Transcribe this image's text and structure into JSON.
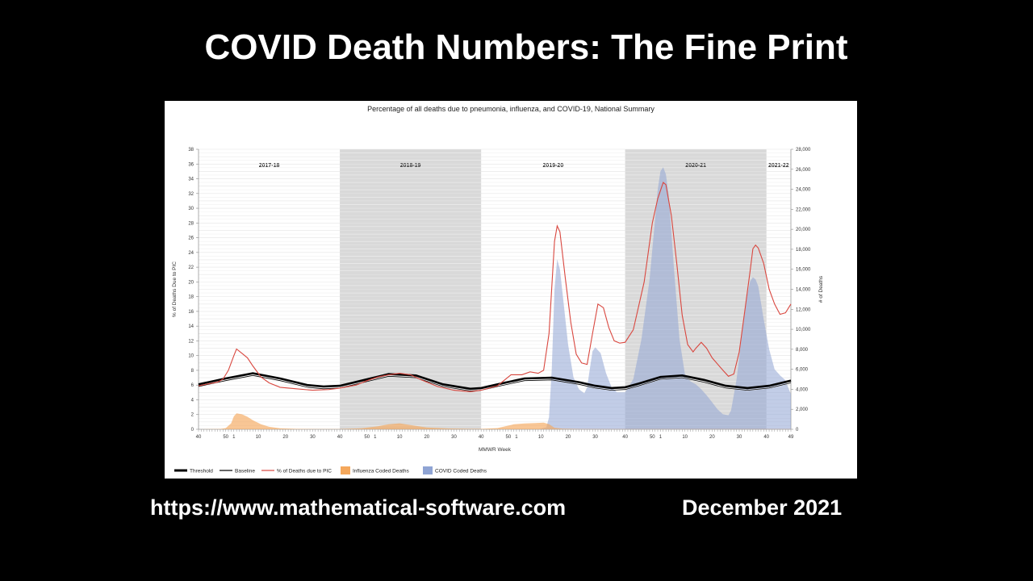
{
  "slide": {
    "title": "COVID Death Numbers: The Fine Print",
    "url": "https://www.mathematical-software.com",
    "date": "December 2021"
  },
  "chart_data": {
    "type": "line",
    "title": "Percentage of all deaths due to pneumonia, influenza, and COVID-19, National Summary",
    "xlabel": "MMWR Week",
    "ylabel_left": "% of Deaths Due to PIC",
    "ylabel_right": "# of Deaths",
    "ylim_left": [
      0,
      38
    ],
    "ylim_right": [
      0,
      28000
    ],
    "yticks_left": [
      "0",
      "2",
      "4",
      "6",
      "8",
      "10",
      "12",
      "14",
      "16",
      "18",
      "20",
      "22",
      "24",
      "26",
      "28",
      "30",
      "32",
      "34",
      "36",
      "38"
    ],
    "yticks_right": [
      "0",
      "2,000",
      "4,000",
      "6,000",
      "8,000",
      "10,000",
      "12,000",
      "14,000",
      "16,000",
      "18,000",
      "20,000",
      "22,000",
      "24,000",
      "26,000",
      "28,000"
    ],
    "x_ticks": [
      {
        "t": 0,
        "label": "40"
      },
      {
        "t": 10,
        "label": "50"
      },
      {
        "t": 13,
        "label": "1"
      },
      {
        "t": 22,
        "label": "10"
      },
      {
        "t": 32,
        "label": "20"
      },
      {
        "t": 42,
        "label": "30"
      },
      {
        "t": 52,
        "label": "40"
      },
      {
        "t": 62,
        "label": "50"
      },
      {
        "t": 65,
        "label": "1"
      },
      {
        "t": 74,
        "label": "10"
      },
      {
        "t": 84,
        "label": "20"
      },
      {
        "t": 94,
        "label": "30"
      },
      {
        "t": 104,
        "label": "40"
      },
      {
        "t": 114,
        "label": "50"
      },
      {
        "t": 117,
        "label": "1"
      },
      {
        "t": 126,
        "label": "10"
      },
      {
        "t": 136,
        "label": "20"
      },
      {
        "t": 146,
        "label": "30"
      },
      {
        "t": 157,
        "label": "40"
      },
      {
        "t": 167,
        "label": "50"
      },
      {
        "t": 170,
        "label": "1"
      },
      {
        "t": 179,
        "label": "10"
      },
      {
        "t": 189,
        "label": "20"
      },
      {
        "t": 199,
        "label": "30"
      },
      {
        "t": 209,
        "label": "40"
      },
      {
        "t": 218,
        "label": "49"
      }
    ],
    "seasons": [
      {
        "label": "2017-18",
        "start": 0,
        "end": 52,
        "shaded": false
      },
      {
        "label": "2018-19",
        "start": 52,
        "end": 104,
        "shaded": true
      },
      {
        "label": "2019-20",
        "start": 104,
        "end": 157,
        "shaded": false
      },
      {
        "label": "2020-21",
        "start": 157,
        "end": 209,
        "shaded": true
      },
      {
        "label": "2021-22",
        "start": 209,
        "end": 218,
        "shaded": false
      }
    ],
    "legend": [
      "Threshold",
      "Baseline",
      "% of Deaths due to PIC",
      "Influenza Coded Deaths",
      "COVID Coded Deaths"
    ],
    "legend_position": "bottom",
    "colors": {
      "threshold": "#000000",
      "baseline": "#000000",
      "pic": "#d9473f",
      "influenza": "#f5a85c",
      "covid": "#8fa4d4",
      "shade": "#d9d9d9"
    },
    "series": [
      {
        "name": "% of Deaths due to PIC",
        "axis": "left",
        "points": [
          [
            0,
            5.9
          ],
          [
            4,
            6.2
          ],
          [
            7,
            6.4
          ],
          [
            9,
            6.8
          ],
          [
            11,
            8.0
          ],
          [
            13,
            10.0
          ],
          [
            14,
            10.9
          ],
          [
            16,
            10.3
          ],
          [
            18,
            9.7
          ],
          [
            20,
            8.6
          ],
          [
            23,
            7.1
          ],
          [
            26,
            6.3
          ],
          [
            30,
            5.7
          ],
          [
            36,
            5.5
          ],
          [
            42,
            5.3
          ],
          [
            48,
            5.4
          ],
          [
            52,
            5.6
          ],
          [
            58,
            6.0
          ],
          [
            62,
            6.6
          ],
          [
            66,
            7.1
          ],
          [
            70,
            7.4
          ],
          [
            74,
            7.6
          ],
          [
            78,
            7.4
          ],
          [
            82,
            6.7
          ],
          [
            88,
            5.8
          ],
          [
            94,
            5.3
          ],
          [
            100,
            5.1
          ],
          [
            104,
            5.3
          ],
          [
            110,
            5.9
          ],
          [
            115,
            7.4
          ],
          [
            119,
            7.4
          ],
          [
            122,
            7.8
          ],
          [
            125,
            7.6
          ],
          [
            127,
            8.0
          ],
          [
            129,
            13.0
          ],
          [
            131,
            25.5
          ],
          [
            132,
            27.6
          ],
          [
            133,
            26.8
          ],
          [
            135,
            20.5
          ],
          [
            137,
            14.5
          ],
          [
            139,
            10.2
          ],
          [
            141,
            9.0
          ],
          [
            143,
            8.8
          ],
          [
            145,
            13.0
          ],
          [
            147,
            17.0
          ],
          [
            149,
            16.5
          ],
          [
            151,
            13.8
          ],
          [
            153,
            12.0
          ],
          [
            155,
            11.7
          ],
          [
            157,
            11.8
          ],
          [
            160,
            13.5
          ],
          [
            164,
            20.0
          ],
          [
            167,
            28.0
          ],
          [
            169,
            31.3
          ],
          [
            171,
            33.5
          ],
          [
            172,
            33.2
          ],
          [
            174,
            29.0
          ],
          [
            176,
            22.5
          ],
          [
            178,
            15.5
          ],
          [
            180,
            11.5
          ],
          [
            182,
            10.5
          ],
          [
            183,
            11.0
          ],
          [
            185,
            11.8
          ],
          [
            187,
            11.0
          ],
          [
            189,
            9.7
          ],
          [
            193,
            8.0
          ],
          [
            195,
            7.2
          ],
          [
            197,
            7.5
          ],
          [
            199,
            10.5
          ],
          [
            201,
            16.0
          ],
          [
            203,
            21.5
          ],
          [
            204,
            24.5
          ],
          [
            205,
            25.0
          ],
          [
            206,
            24.6
          ],
          [
            208,
            22.5
          ],
          [
            210,
            19.0
          ],
          [
            212,
            17.0
          ],
          [
            214,
            15.6
          ],
          [
            216,
            15.8
          ],
          [
            218,
            17.0
          ]
        ]
      },
      {
        "name": "Threshold",
        "axis": "left",
        "points": [
          [
            0,
            6.1
          ],
          [
            10,
            6.9
          ],
          [
            20,
            7.6
          ],
          [
            30,
            6.9
          ],
          [
            40,
            6.0
          ],
          [
            46,
            5.8
          ],
          [
            52,
            5.9
          ],
          [
            60,
            6.6
          ],
          [
            70,
            7.5
          ],
          [
            80,
            7.3
          ],
          [
            90,
            6.1
          ],
          [
            100,
            5.5
          ],
          [
            104,
            5.6
          ],
          [
            110,
            6.1
          ],
          [
            120,
            6.9
          ],
          [
            130,
            7.0
          ],
          [
            140,
            6.4
          ],
          [
            146,
            5.9
          ],
          [
            152,
            5.6
          ],
          [
            157,
            5.7
          ],
          [
            162,
            6.2
          ],
          [
            170,
            7.1
          ],
          [
            178,
            7.3
          ],
          [
            186,
            6.7
          ],
          [
            194,
            5.9
          ],
          [
            202,
            5.6
          ],
          [
            210,
            5.9
          ],
          [
            218,
            6.6
          ]
        ]
      },
      {
        "name": "Baseline",
        "axis": "left",
        "points": [
          [
            0,
            5.8
          ],
          [
            10,
            6.6
          ],
          [
            20,
            7.3
          ],
          [
            30,
            6.6
          ],
          [
            40,
            5.7
          ],
          [
            46,
            5.5
          ],
          [
            52,
            5.6
          ],
          [
            60,
            6.3
          ],
          [
            70,
            7.2
          ],
          [
            80,
            7.0
          ],
          [
            90,
            5.8
          ],
          [
            100,
            5.2
          ],
          [
            104,
            5.3
          ],
          [
            110,
            5.8
          ],
          [
            120,
            6.6
          ],
          [
            130,
            6.7
          ],
          [
            140,
            6.1
          ],
          [
            146,
            5.6
          ],
          [
            152,
            5.3
          ],
          [
            157,
            5.4
          ],
          [
            162,
            5.9
          ],
          [
            170,
            6.8
          ],
          [
            178,
            7.0
          ],
          [
            186,
            6.4
          ],
          [
            194,
            5.6
          ],
          [
            202,
            5.3
          ],
          [
            210,
            5.6
          ],
          [
            218,
            6.3
          ]
        ]
      },
      {
        "name": "Influenza Coded Deaths",
        "axis": "right",
        "points": [
          [
            0,
            0
          ],
          [
            8,
            30
          ],
          [
            10,
            120
          ],
          [
            12,
            600
          ],
          [
            13,
            1300
          ],
          [
            14,
            1600
          ],
          [
            16,
            1500
          ],
          [
            18,
            1250
          ],
          [
            20,
            900
          ],
          [
            23,
            500
          ],
          [
            26,
            250
          ],
          [
            30,
            100
          ],
          [
            36,
            40
          ],
          [
            44,
            15
          ],
          [
            52,
            20
          ],
          [
            60,
            100
          ],
          [
            66,
            300
          ],
          [
            70,
            500
          ],
          [
            74,
            600
          ],
          [
            78,
            420
          ],
          [
            84,
            180
          ],
          [
            92,
            80
          ],
          [
            100,
            40
          ],
          [
            104,
            40
          ],
          [
            110,
            120
          ],
          [
            116,
            500
          ],
          [
            120,
            580
          ],
          [
            124,
            620
          ],
          [
            127,
            660
          ],
          [
            129,
            520
          ],
          [
            131,
            150
          ],
          [
            134,
            60
          ],
          [
            140,
            30
          ],
          [
            150,
            15
          ],
          [
            160,
            15
          ],
          [
            170,
            20
          ],
          [
            190,
            15
          ],
          [
            210,
            15
          ],
          [
            218,
            15
          ]
        ]
      },
      {
        "name": "COVID Coded Deaths",
        "axis": "right",
        "points": [
          [
            125,
            0
          ],
          [
            128,
            200
          ],
          [
            129,
            1200
          ],
          [
            130,
            6000
          ],
          [
            131,
            14000
          ],
          [
            132,
            17000
          ],
          [
            133,
            16000
          ],
          [
            134,
            13500
          ],
          [
            136,
            8500
          ],
          [
            138,
            5200
          ],
          [
            140,
            4000
          ],
          [
            142,
            3600
          ],
          [
            143,
            4200
          ],
          [
            144,
            6000
          ],
          [
            145,
            7800
          ],
          [
            146,
            8200
          ],
          [
            148,
            7600
          ],
          [
            150,
            5600
          ],
          [
            152,
            4200
          ],
          [
            154,
            3700
          ],
          [
            157,
            3700
          ],
          [
            160,
            5000
          ],
          [
            163,
            9000
          ],
          [
            166,
            15000
          ],
          [
            168,
            21000
          ],
          [
            169,
            24000
          ],
          [
            170,
            25800
          ],
          [
            171,
            26200
          ],
          [
            172,
            25500
          ],
          [
            173,
            23500
          ],
          [
            175,
            16000
          ],
          [
            177,
            9000
          ],
          [
            179,
            5500
          ],
          [
            181,
            4800
          ],
          [
            183,
            4500
          ],
          [
            185,
            4000
          ],
          [
            187,
            3400
          ],
          [
            189,
            2700
          ],
          [
            191,
            2000
          ],
          [
            193,
            1500
          ],
          [
            195,
            1400
          ],
          [
            196,
            1900
          ],
          [
            198,
            5000
          ],
          [
            200,
            9500
          ],
          [
            202,
            13500
          ],
          [
            203,
            14800
          ],
          [
            204,
            15200
          ],
          [
            205,
            15000
          ],
          [
            206,
            14300
          ],
          [
            208,
            11000
          ],
          [
            210,
            8000
          ],
          [
            212,
            6000
          ],
          [
            214,
            5400
          ],
          [
            216,
            4900
          ],
          [
            218,
            3500
          ]
        ]
      }
    ]
  }
}
